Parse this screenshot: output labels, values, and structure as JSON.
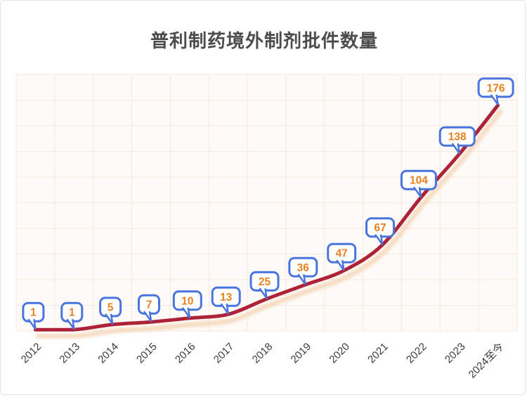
{
  "chart_data": {
    "type": "line",
    "title": "普利制药境外制剂批件数量",
    "categories": [
      "2012",
      "2013",
      "2014",
      "2015",
      "2016",
      "2017",
      "2018",
      "2019",
      "2020",
      "2021",
      "2022",
      "2023",
      "2024至今"
    ],
    "values": [
      1,
      1,
      5,
      7,
      10,
      13,
      25,
      36,
      47,
      67,
      104,
      138,
      176
    ],
    "xlabel": "",
    "ylabel": "",
    "ylim": [
      0,
      200
    ],
    "y_grid_step": 20,
    "grid": true,
    "legend": false,
    "data_labels": "callout-bubbles",
    "style": {
      "line_color": "#ae2238",
      "line_shadow_color": "#f5d5b8",
      "callout_border_color": "#4a74dd",
      "callout_text_color": "#e8811f",
      "callout_fill": "#ffffff",
      "grid_color": "#f6e7e1",
      "plot_border_color": "#eed9d0",
      "plot_bg": "#fefaf7",
      "axis_label_color": "#3c3c3c",
      "title_color": "#4c4c4c",
      "page_bg": "#ffffff",
      "card_border": "#e4e4e4"
    }
  }
}
